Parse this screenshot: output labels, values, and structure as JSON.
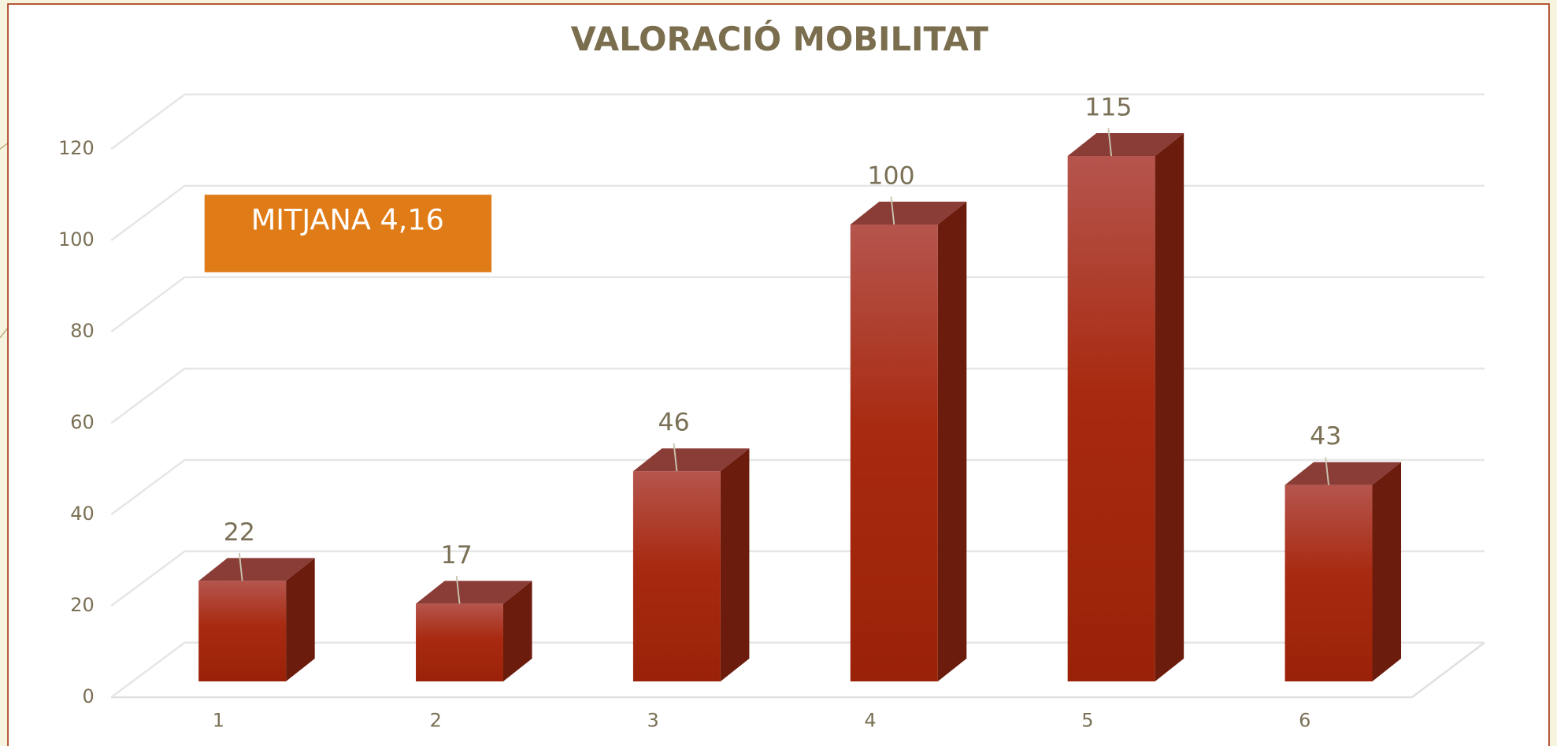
{
  "chart_data": {
    "type": "bar3d",
    "title": "VALORACIÓ MOBILITAT",
    "annotation": "MITJANA 4,16",
    "categories": [
      "1",
      "2",
      "3",
      "4",
      "5",
      "6"
    ],
    "values": [
      22,
      17,
      46,
      100,
      115,
      43
    ],
    "color": "#a82a10",
    "ylim": [
      0,
      120
    ],
    "yticks": [
      0,
      20,
      40,
      60,
      80,
      100,
      120
    ],
    "grid": true
  }
}
